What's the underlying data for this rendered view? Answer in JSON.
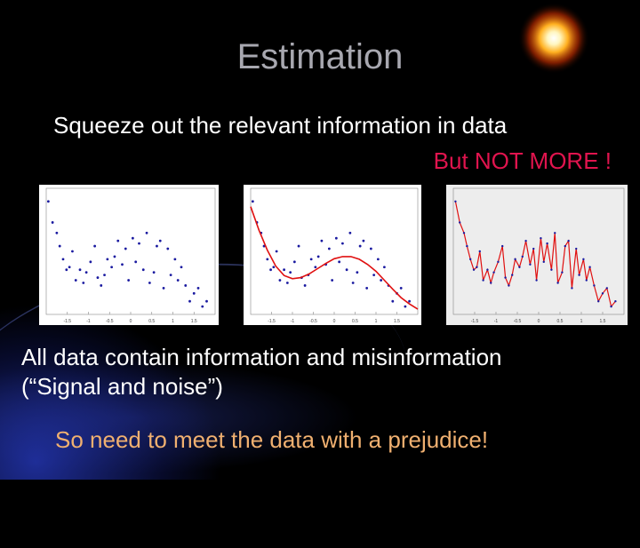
{
  "slide": {
    "title": "Estimation",
    "line1": "Squeeze out the relevant information in data",
    "line2": "But NOT MORE !",
    "body_line1": "All data contain information and misinformation",
    "body_line2": "(“Signal and noise”)",
    "conclusion": "So need to meet the data with a prejudice!"
  },
  "colors": {
    "title": "#a8a8b0",
    "text": "#ffffff",
    "emphasis": "#e0144e",
    "conclusion": "#f0b070",
    "points": "#1a1aa0",
    "fit": "#e01010"
  },
  "decor": [
    "sun-icon"
  ],
  "chart_data": [
    {
      "type": "scatter",
      "xticks": [
        "-1.5",
        "-1",
        "-0.5",
        "0",
        "0.5",
        "1",
        "1.5"
      ],
      "xlim": [
        -2,
        2
      ],
      "ylim": [
        -1.2,
        1.2
      ],
      "points": {
        "x": [
          -1.95,
          -1.85,
          -1.75,
          -1.68,
          -1.6,
          -1.52,
          -1.45,
          -1.38,
          -1.3,
          -1.2,
          -1.12,
          -1.05,
          -0.95,
          -0.85,
          -0.78,
          -0.7,
          -0.62,
          -0.55,
          -0.45,
          -0.38,
          -0.3,
          -0.2,
          -0.12,
          -0.05,
          0.05,
          0.12,
          0.2,
          0.3,
          0.38,
          0.45,
          0.55,
          0.62,
          0.7,
          0.78,
          0.88,
          0.95,
          1.05,
          1.12,
          1.2,
          1.3,
          1.4,
          1.5,
          1.6,
          1.7,
          1.8
        ],
        "y": [
          0.95,
          0.55,
          0.35,
          0.1,
          -0.15,
          -0.35,
          -0.3,
          0.0,
          -0.55,
          -0.35,
          -0.6,
          -0.4,
          -0.2,
          0.1,
          -0.5,
          -0.65,
          -0.45,
          -0.15,
          -0.3,
          -0.1,
          0.2,
          -0.25,
          0.05,
          -0.55,
          0.25,
          -0.2,
          0.15,
          -0.35,
          0.35,
          -0.6,
          -0.4,
          0.1,
          0.2,
          -0.7,
          0.05,
          -0.45,
          -0.15,
          -0.55,
          -0.3,
          -0.65,
          -0.95,
          -0.8,
          -0.7,
          -1.05,
          -0.95
        ]
      }
    },
    {
      "type": "scatter",
      "xticks": [
        "-1.5",
        "-1",
        "-0.5",
        "0",
        "0.5",
        "1",
        "1.5"
      ],
      "xlim": [
        -2,
        2
      ],
      "ylim": [
        -1.2,
        1.2
      ],
      "points": {
        "x": [
          -1.95,
          -1.85,
          -1.75,
          -1.68,
          -1.6,
          -1.52,
          -1.45,
          -1.38,
          -1.3,
          -1.2,
          -1.12,
          -1.05,
          -0.95,
          -0.85,
          -0.78,
          -0.7,
          -0.62,
          -0.55,
          -0.45,
          -0.38,
          -0.3,
          -0.2,
          -0.12,
          -0.05,
          0.05,
          0.12,
          0.2,
          0.3,
          0.38,
          0.45,
          0.55,
          0.62,
          0.7,
          0.78,
          0.88,
          0.95,
          1.05,
          1.12,
          1.2,
          1.3,
          1.4,
          1.5,
          1.6,
          1.7,
          1.8
        ],
        "y": [
          0.95,
          0.55,
          0.35,
          0.1,
          -0.15,
          -0.35,
          -0.3,
          0.0,
          -0.55,
          -0.35,
          -0.6,
          -0.4,
          -0.2,
          0.1,
          -0.5,
          -0.65,
          -0.45,
          -0.15,
          -0.3,
          -0.1,
          0.2,
          -0.25,
          0.05,
          -0.55,
          0.25,
          -0.2,
          0.15,
          -0.35,
          0.35,
          -0.6,
          -0.4,
          0.1,
          0.2,
          -0.7,
          0.05,
          -0.45,
          -0.15,
          -0.55,
          -0.3,
          -0.65,
          -0.95,
          -0.8,
          -0.7,
          -1.05,
          -0.95
        ]
      },
      "fit": {
        "x": [
          -2,
          -1.8,
          -1.6,
          -1.4,
          -1.2,
          -1.0,
          -0.8,
          -0.6,
          -0.4,
          -0.2,
          0,
          0.2,
          0.4,
          0.6,
          0.8,
          1.0,
          1.2,
          1.4,
          1.6,
          1.8,
          2.0
        ],
        "y": [
          0.85,
          0.4,
          0.02,
          -0.28,
          -0.46,
          -0.52,
          -0.5,
          -0.43,
          -0.33,
          -0.23,
          -0.14,
          -0.1,
          -0.1,
          -0.15,
          -0.25,
          -0.38,
          -0.55,
          -0.72,
          -0.88,
          -1.0,
          -1.1
        ]
      }
    },
    {
      "type": "line",
      "xticks": [
        "-1.5",
        "-1",
        "-0.5",
        "0",
        "0.5",
        "1",
        "1.5"
      ],
      "xlim": [
        -2,
        2
      ],
      "ylim": [
        -1.2,
        1.2
      ],
      "line": {
        "x": [
          -1.95,
          -1.85,
          -1.75,
          -1.68,
          -1.6,
          -1.52,
          -1.45,
          -1.38,
          -1.3,
          -1.2,
          -1.12,
          -1.05,
          -0.95,
          -0.85,
          -0.78,
          -0.7,
          -0.62,
          -0.55,
          -0.45,
          -0.38,
          -0.3,
          -0.2,
          -0.12,
          -0.05,
          0.05,
          0.12,
          0.2,
          0.3,
          0.38,
          0.45,
          0.55,
          0.62,
          0.7,
          0.78,
          0.88,
          0.95,
          1.05,
          1.12,
          1.2,
          1.3,
          1.4,
          1.5,
          1.6,
          1.7,
          1.8
        ],
        "y": [
          0.95,
          0.55,
          0.35,
          0.1,
          -0.15,
          -0.35,
          -0.3,
          0.0,
          -0.55,
          -0.35,
          -0.6,
          -0.4,
          -0.2,
          0.1,
          -0.5,
          -0.65,
          -0.45,
          -0.15,
          -0.3,
          -0.1,
          0.2,
          -0.25,
          0.05,
          -0.55,
          0.25,
          -0.2,
          0.15,
          -0.35,
          0.35,
          -0.6,
          -0.4,
          0.1,
          0.2,
          -0.7,
          0.05,
          -0.45,
          -0.15,
          -0.55,
          -0.3,
          -0.65,
          -0.95,
          -0.8,
          -0.7,
          -1.05,
          -0.95
        ]
      }
    }
  ]
}
